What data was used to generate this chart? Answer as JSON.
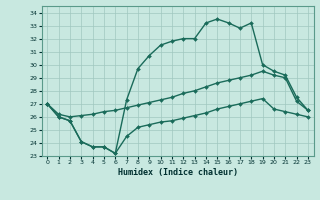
{
  "xlabel": "Humidex (Indice chaleur)",
  "xlim": [
    -0.5,
    23.5
  ],
  "ylim": [
    23,
    34.5
  ],
  "yticks": [
    23,
    24,
    25,
    26,
    27,
    28,
    29,
    30,
    31,
    32,
    33,
    34
  ],
  "xticks": [
    0,
    1,
    2,
    3,
    4,
    5,
    6,
    7,
    8,
    9,
    10,
    11,
    12,
    13,
    14,
    15,
    16,
    17,
    18,
    19,
    20,
    21,
    22,
    23
  ],
  "bg_color": "#c8e8e0",
  "grid_color": "#a0c8c0",
  "line_color": "#1a6b5a",
  "line_width": 1.0,
  "marker_size": 2.0,
  "top_x": [
    0,
    1,
    2,
    3,
    4,
    5,
    6,
    7,
    8,
    9,
    10,
    11,
    12,
    13,
    14,
    15,
    16,
    17,
    18,
    19,
    20,
    21,
    22,
    23
  ],
  "top_y": [
    27.0,
    26.0,
    25.7,
    24.1,
    23.7,
    23.7,
    23.2,
    27.3,
    29.7,
    30.7,
    31.5,
    31.8,
    32.0,
    32.0,
    33.2,
    33.5,
    33.2,
    32.8,
    33.2,
    30.0,
    29.5,
    29.2,
    27.5,
    26.5
  ],
  "mid_x": [
    0,
    1,
    2,
    3,
    4,
    5,
    6,
    7,
    8,
    9,
    10,
    11,
    12,
    13,
    14,
    15,
    16,
    17,
    18,
    19,
    20,
    21,
    22,
    23
  ],
  "mid_y": [
    27.0,
    26.2,
    26.0,
    26.1,
    26.2,
    26.4,
    26.5,
    26.7,
    26.9,
    27.1,
    27.3,
    27.5,
    27.8,
    28.0,
    28.3,
    28.6,
    28.8,
    29.0,
    29.2,
    29.5,
    29.2,
    29.0,
    27.2,
    26.5
  ],
  "bot_x": [
    0,
    1,
    2,
    3,
    4,
    5,
    6,
    7,
    8,
    9,
    10,
    11,
    12,
    13,
    14,
    15,
    16,
    17,
    18,
    19,
    20,
    21,
    22,
    23
  ],
  "bot_y": [
    27.0,
    26.0,
    25.7,
    24.1,
    23.7,
    23.7,
    23.2,
    24.5,
    25.2,
    25.4,
    25.6,
    25.7,
    25.9,
    26.1,
    26.3,
    26.6,
    26.8,
    27.0,
    27.2,
    27.4,
    26.6,
    26.4,
    26.2,
    26.0
  ]
}
